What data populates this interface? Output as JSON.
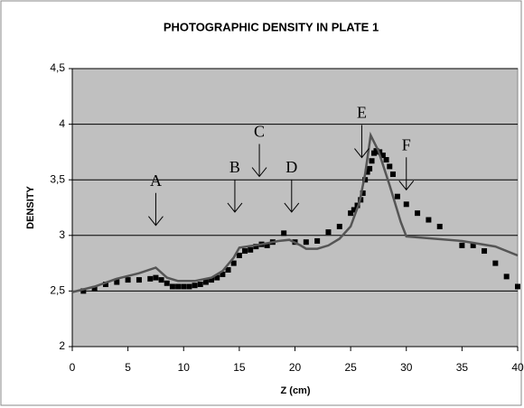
{
  "chart_data": {
    "type": "scatter",
    "title": "PHOTOGRAPHIC DENSITY IN PLATE 1",
    "x_label": "Z (cm)",
    "y_label": "DENSITY",
    "xlim": [
      0,
      40
    ],
    "xticks": [
      0,
      5,
      10,
      15,
      20,
      25,
      30,
      35,
      40
    ],
    "ylim": [
      2,
      4.5
    ],
    "yticks": [
      2,
      {
        "value": 2.5,
        "label": "2,5"
      },
      3,
      {
        "value": 3.5,
        "label": "3,5"
      },
      4,
      {
        "value": 4.5,
        "label": "4,5"
      }
    ],
    "grid": true,
    "plot_background": "#c0c0c0",
    "series": [
      {
        "type": "scatter",
        "color": "#000000",
        "x": [
          1,
          2,
          3,
          4,
          5,
          6,
          7,
          7.5,
          8,
          8.5,
          9,
          9.5,
          10,
          10.5,
          11,
          11.5,
          12,
          12.5,
          13,
          13.5,
          14,
          14.5,
          15,
          15.5,
          16,
          16.5,
          17,
          17.5,
          18,
          19,
          20,
          21,
          22,
          23,
          24,
          25,
          25.3,
          25.6,
          25.9,
          26.1,
          26.3,
          26.5,
          26.7,
          26.9,
          27.1,
          27.3,
          27.6,
          27.9,
          28.2,
          28.5,
          28.8,
          29.2,
          30,
          31,
          32,
          33,
          35,
          36,
          37,
          38,
          39,
          40
        ],
        "values": [
          2.5,
          2.52,
          2.56,
          2.58,
          2.6,
          2.6,
          2.61,
          2.62,
          2.6,
          2.57,
          2.54,
          2.54,
          2.54,
          2.54,
          2.55,
          2.56,
          2.58,
          2.6,
          2.62,
          2.65,
          2.69,
          2.75,
          2.82,
          2.86,
          2.87,
          2.9,
          2.92,
          2.91,
          2.94,
          3.02,
          2.94,
          2.94,
          2.95,
          3.03,
          3.08,
          3.2,
          3.23,
          3.27,
          3.32,
          3.38,
          3.5,
          3.57,
          3.6,
          3.67,
          3.74,
          3.76,
          3.75,
          3.72,
          3.68,
          3.62,
          3.55,
          3.35,
          3.28,
          3.2,
          3.14,
          3.08,
          2.91,
          2.91,
          2.86,
          2.75,
          2.63,
          2.54
        ]
      },
      {
        "type": "line",
        "color": "#555555",
        "x": [
          0,
          2,
          4,
          6,
          7.5,
          8.5,
          9.5,
          11,
          12.5,
          13.5,
          14.5,
          15,
          17,
          18.5,
          19.5,
          20.5,
          21,
          22,
          23,
          24,
          25,
          25.8,
          26.3,
          26.8,
          27.5,
          28.5,
          29.5,
          30,
          35,
          38,
          40
        ],
        "values": [
          2.49,
          2.54,
          2.61,
          2.66,
          2.71,
          2.62,
          2.59,
          2.59,
          2.62,
          2.68,
          2.8,
          2.89,
          2.92,
          2.95,
          2.96,
          2.91,
          2.88,
          2.88,
          2.91,
          2.97,
          3.08,
          3.3,
          3.55,
          3.9,
          3.76,
          3.45,
          3.12,
          2.99,
          2.95,
          2.9,
          2.82
        ]
      }
    ],
    "annotations": [
      {
        "text": "A",
        "x": 7.5,
        "y": 3.09
      },
      {
        "text": "B",
        "x": 14.6,
        "y": 3.21
      },
      {
        "text": "C",
        "x": 16.8,
        "y": 3.53
      },
      {
        "text": "D",
        "x": 19.7,
        "y": 3.21
      },
      {
        "text": "E",
        "x": 26,
        "y": 3.7
      },
      {
        "text": "F",
        "x": 30,
        "y": 3.41
      }
    ]
  }
}
